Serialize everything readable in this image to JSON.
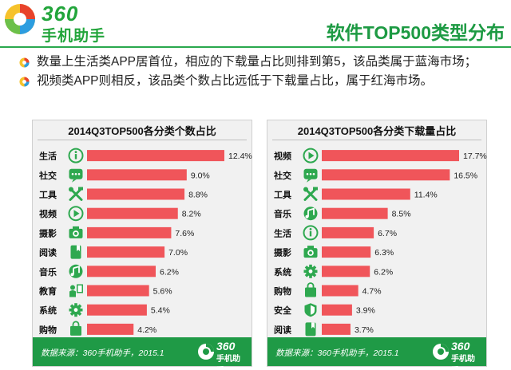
{
  "header": {
    "logo_number": "360",
    "logo_text": "手机助手",
    "title": "软件TOP500类型分布"
  },
  "bullets": [
    "数量上生活类APP居首位，相应的下载量占比则排到第5，该品类属于蓝海市场；",
    "视频类APP则相反，该品类个数占比远低于下载量占比，属于红海市场。"
  ],
  "colors": {
    "bar": "#f0555a",
    "icon": "#2ea84f",
    "accent": "#1f9a46"
  },
  "chart_data": [
    {
      "type": "bar",
      "title": "2014Q3TOP500各分类个数占比",
      "categories": [
        "生活",
        "社交",
        "工具",
        "视频",
        "摄影",
        "阅读",
        "音乐",
        "教育",
        "系统",
        "购物"
      ],
      "icons": [
        "info-icon",
        "chat-icon",
        "tools-icon",
        "play-icon",
        "camera-icon",
        "book-icon",
        "music-icon",
        "education-icon",
        "gear-icon",
        "shopping-bag-icon"
      ],
      "values": [
        12.4,
        9.0,
        8.8,
        8.2,
        7.6,
        7.0,
        6.2,
        5.6,
        5.4,
        4.2
      ],
      "labels": [
        "12.4%",
        "9.0%",
        "8.8%",
        "8.2%",
        "7.6%",
        "7.0%",
        "6.2%",
        "5.6%",
        "5.4%",
        "4.2%"
      ],
      "xlabel": "",
      "ylabel": "",
      "xlim": [
        0,
        12.4
      ],
      "source": "数据来源：360手机助手，2015.1"
    },
    {
      "type": "bar",
      "title": "2014Q3TOP500各分类下载量占比",
      "categories": [
        "视频",
        "社交",
        "工具",
        "音乐",
        "生活",
        "摄影",
        "系统",
        "购物",
        "安全",
        "阅读"
      ],
      "icons": [
        "play-icon",
        "chat-icon",
        "tools-icon",
        "music-icon",
        "info-icon",
        "camera-icon",
        "gear-icon",
        "shopping-bag-icon",
        "shield-icon",
        "book-icon"
      ],
      "values": [
        17.7,
        16.5,
        11.4,
        8.5,
        6.7,
        6.3,
        6.2,
        4.7,
        3.9,
        3.7
      ],
      "labels": [
        "17.7%",
        "16.5%",
        "11.4%",
        "8.5%",
        "6.7%",
        "6.3%",
        "6.2%",
        "4.7%",
        "3.9%",
        "3.7%"
      ],
      "xlabel": "",
      "ylabel": "",
      "xlim": [
        0,
        17.7
      ],
      "source": "数据来源：360手机助手，2015.1"
    }
  ]
}
